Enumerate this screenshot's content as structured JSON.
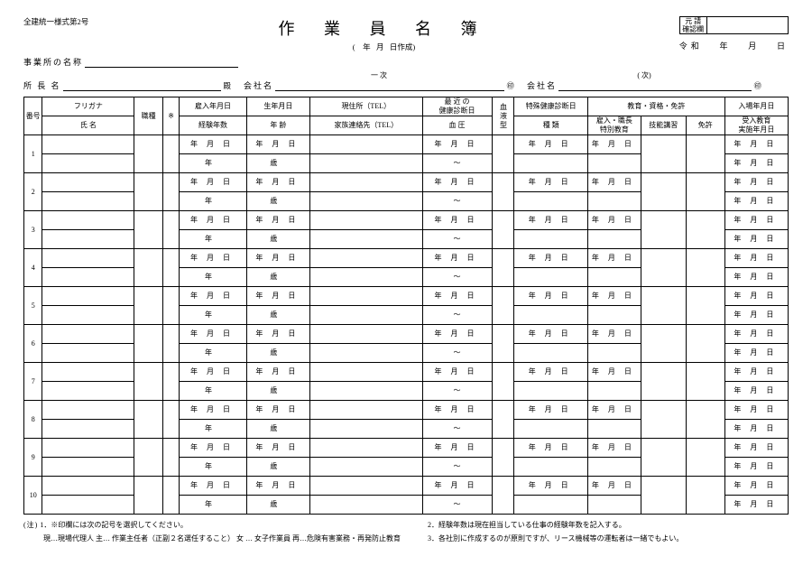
{
  "form_no": "全建統一様式第2号",
  "title": "作 業 員 名 簿",
  "title_sub_prefix": "(",
  "title_sub_y": "年",
  "title_sub_m": "月",
  "title_sub_d": "日作成)",
  "confirm_label_1": "元 請",
  "confirm_label_2": "確認欄",
  "reiwa": "令和",
  "y": "年",
  "m": "月",
  "d": "日",
  "jigyo_label": "事業所の名称",
  "shocho_label": "所 長 名",
  "shocho_suffix": "殿",
  "ichiji_label": "一 次",
  "kaisha_label": "会社名",
  "in_suffix": "㊞",
  "ji_label": "(  次)",
  "headers": {
    "no": "番号",
    "furigana": "フリガナ",
    "name": "氏 名",
    "shokushu": "職種",
    "mark": "※",
    "hire_date": "雇入年月日",
    "exp_years": "経験年数",
    "birth": "生年月日",
    "age": "年 齢",
    "addr": "現住所（TEL）",
    "family": "家族連絡先（TEL）",
    "health_top": "最 近 の",
    "health_bot": "健康診断日",
    "bp": "血 圧",
    "blood": "血液型",
    "special": "特殊健康診断日",
    "kind": "種 類",
    "edu_group": "教育・資格・免許",
    "edu1a": "雇入・職長",
    "edu1b": "特別教育",
    "edu2": "技能講習",
    "edu3": "免許",
    "entry": "入場年月日",
    "recv_a": "受入教育",
    "recv_b": "実施年月日"
  },
  "ymd": "年 月 日",
  "nen": "年",
  "sai": "歳",
  "tilde": "～",
  "row_count": 10,
  "notes": {
    "head": "(注)",
    "n1": "1．※印欄には次の記号を選択してください。",
    "n1b": "現…現場代理人 主… 作業主任者（正副２名選任すること） 女 … 女子作業員 再…危険有害業務・再発防止教育",
    "n2": "2．経験年数は現在担当している仕事の経験年数を記入する。",
    "n3": "3．各社別に作成するのが原則ですが、リース機械等の運転者は一緒でもよい。"
  }
}
